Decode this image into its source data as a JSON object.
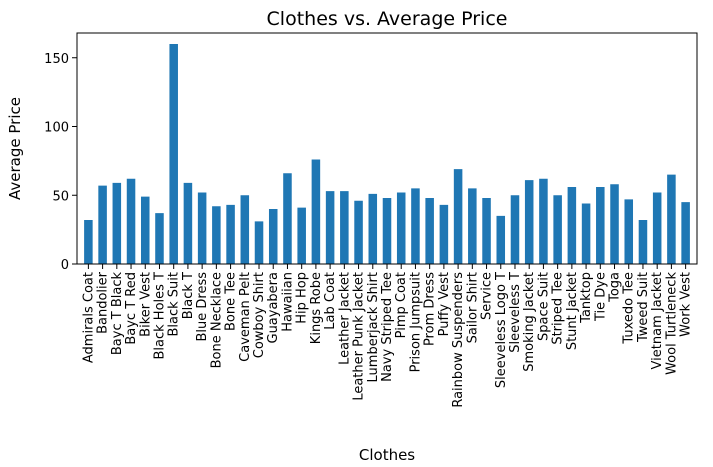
{
  "chart_data": {
    "type": "bar",
    "title": "Clothes vs. Average Price",
    "xlabel": "Clothes",
    "ylabel": "Average Price",
    "ylim": [
      0,
      168
    ],
    "yticks": [
      0,
      50,
      100,
      150
    ],
    "color": "#1f77b4",
    "grid": false,
    "categories": [
      "Admirals Coat",
      "Bandolier",
      "Bayc T Black",
      "Bayc T Red",
      "Biker Vest",
      "Black Holes T",
      "Black Suit",
      "Black T",
      "Blue Dress",
      "Bone Necklace",
      "Bone Tee",
      "Caveman Pelt",
      "Cowboy Shirt",
      "Guayabera",
      "Hawaiian",
      "Hip Hop",
      "Kings Robe",
      "Lab Coat",
      "Leather Jacket",
      "Leather Punk Jacket",
      "Lumberjack Shirt",
      "Navy Striped Tee",
      "Pimp Coat",
      "Prison Jumpsuit",
      "Prom Dress",
      "Puffy Vest",
      "Rainbow Suspenders",
      "Sailor Shirt",
      "Service",
      "Sleeveless Logo T",
      "Sleeveless T",
      "Smoking Jacket",
      "Space Suit",
      "Striped Tee",
      "Stunt Jacket",
      "Tanktop",
      "Tie Dye",
      "Toga",
      "Tuxedo Tee",
      "Tweed Suit",
      "Vietnam Jacket",
      "Wool Turtleneck",
      "Work Vest"
    ],
    "values": [
      32,
      57,
      59,
      62,
      49,
      37,
      160,
      59,
      52,
      42,
      43,
      50,
      31,
      40,
      66,
      41,
      76,
      53,
      53,
      46,
      51,
      48,
      52,
      55,
      48,
      43,
      69,
      55,
      48,
      35,
      50,
      61,
      62,
      50,
      56,
      44,
      56,
      58,
      47,
      32,
      52,
      65,
      45
    ]
  }
}
